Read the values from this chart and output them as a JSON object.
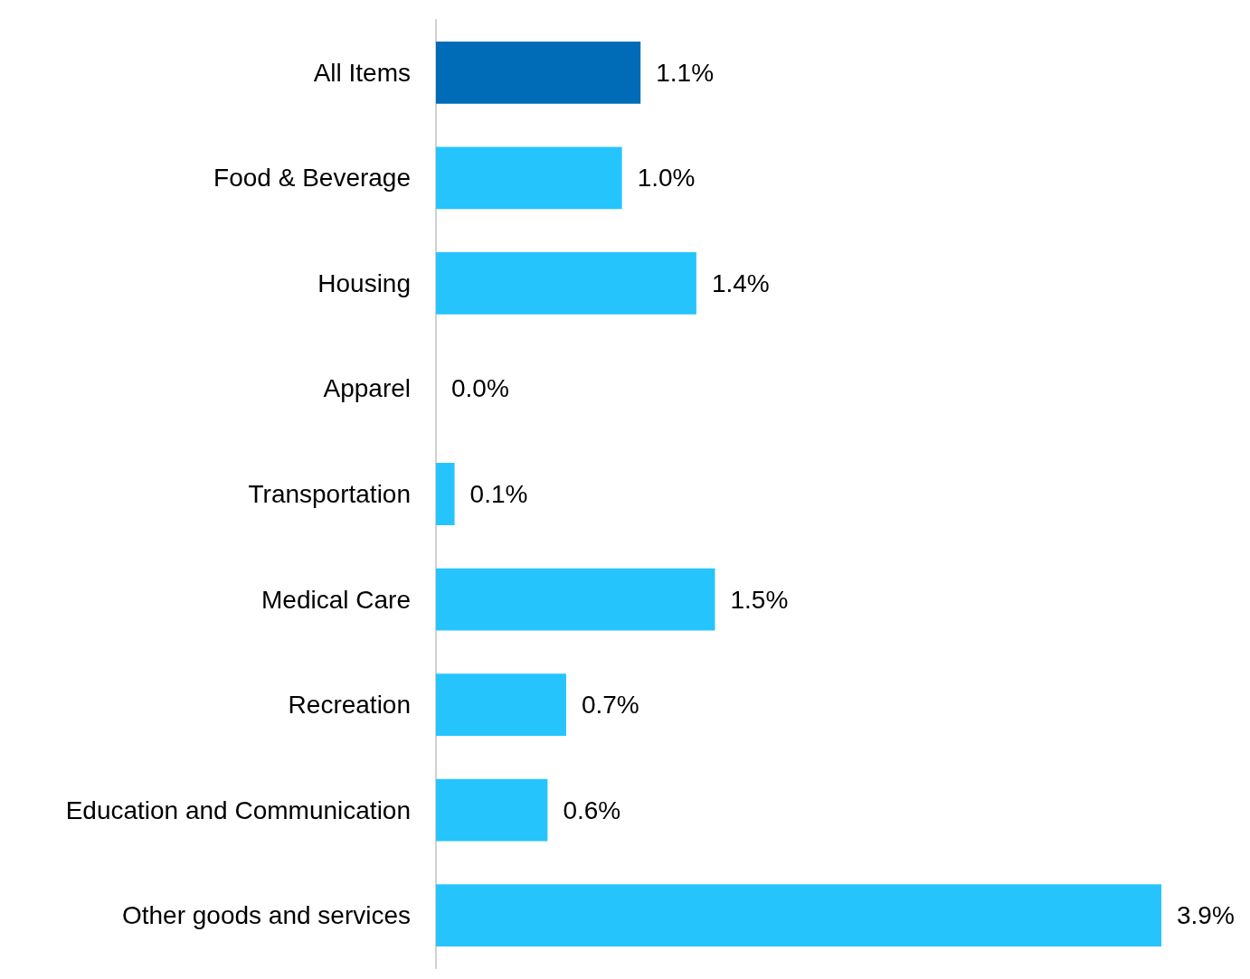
{
  "chart_data": {
    "type": "bar",
    "orientation": "horizontal",
    "categories": [
      "All Items",
      "Food & Beverage",
      "Housing",
      "Apparel",
      "Transportation",
      "Medical Care",
      "Recreation",
      "Education and Communication",
      "Other goods and services"
    ],
    "values": [
      1.1,
      1.0,
      1.4,
      0.0,
      0.1,
      1.5,
      0.7,
      0.6,
      3.9
    ],
    "colors": [
      "#006bb6",
      "#25c4fd",
      "#25c4fd",
      "#25c4fd",
      "#25c4fd",
      "#25c4fd",
      "#25c4fd",
      "#25c4fd",
      "#25c4fd"
    ],
    "value_labels": [
      "1.1%",
      "1.0%",
      "1.4%",
      "0.0%",
      "0.1%",
      "1.5%",
      "0.7%",
      "0.6%",
      "3.9%"
    ]
  }
}
